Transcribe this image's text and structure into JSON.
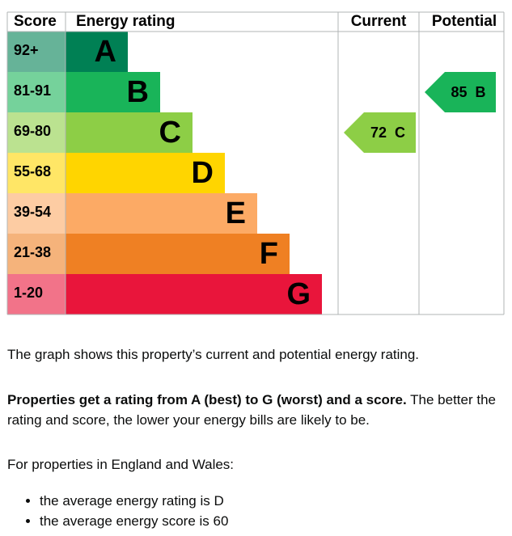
{
  "graph": {
    "headers": [
      "Score",
      "Energy rating",
      "Current",
      "Potential"
    ],
    "bands": [
      {
        "score": "92+",
        "letter": "A",
        "color": "#008054"
      },
      {
        "score": "81-91",
        "letter": "B",
        "color": "#19b459"
      },
      {
        "score": "69-80",
        "letter": "C",
        "color": "#8dce46"
      },
      {
        "score": "55-68",
        "letter": "D",
        "color": "#ffd500"
      },
      {
        "score": "39-54",
        "letter": "E",
        "color": "#fcaa65"
      },
      {
        "score": "21-38",
        "letter": "F",
        "color": "#ef8023"
      },
      {
        "score": "1-20",
        "letter": "G",
        "color": "#e9153b"
      }
    ],
    "current": {
      "score": 72,
      "letter": "C"
    },
    "potential": {
      "score": 85,
      "letter": "B"
    }
  },
  "intro": "The graph shows this property’s current and potential energy rating.",
  "explanation": {
    "bold": "Properties get a rating from A (best) to G (worst) and a score.",
    "text": "The better the rating and score, the lower your energy bills are likely to be."
  },
  "averages_intro": "For properties in England and Wales:",
  "averages": [
    "the average energy rating is D",
    "the average energy score is 60"
  ]
}
